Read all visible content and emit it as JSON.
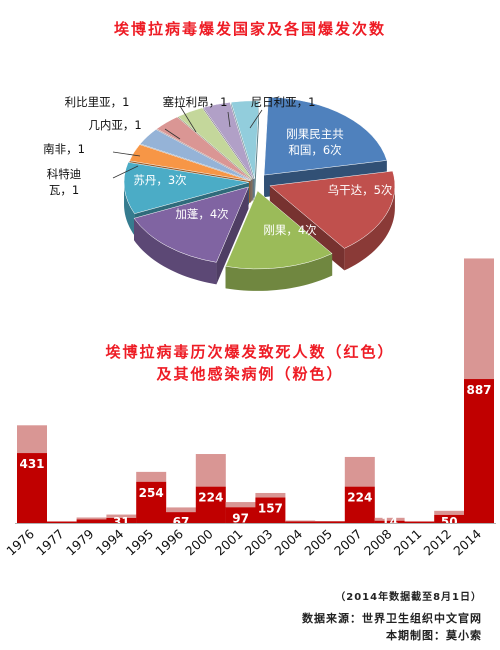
{
  "chart_data": [
    {
      "type": "pie",
      "title": "埃博拉病毒爆发国家及各国爆发次数",
      "slices": [
        {
          "label": "刚果民主共和国，6次",
          "value": 6,
          "color": "#4f81bd"
        },
        {
          "label": "乌干达，5次",
          "value": 5,
          "color": "#c0504d"
        },
        {
          "label": "刚果，4次",
          "value": 4,
          "color": "#9bbb59"
        },
        {
          "label": "加蓬，4次",
          "value": 4,
          "color": "#8064a2"
        },
        {
          "label": "苏丹，3次",
          "value": 3,
          "color": "#4bacc6"
        },
        {
          "label": "科特迪瓦，1",
          "value": 1,
          "color": "#f79646"
        },
        {
          "label": "南非，1",
          "value": 1,
          "color": "#95b3d7"
        },
        {
          "label": "几内亚，1",
          "value": 1,
          "color": "#da9694"
        },
        {
          "label": "利比里亚，1",
          "value": 1,
          "color": "#c4d79b"
        },
        {
          "label": "塞拉利昂，1",
          "value": 1,
          "color": "#b1a0c7"
        },
        {
          "label": "尼日利亚，1",
          "value": 1,
          "color": "#92cddc"
        }
      ]
    },
    {
      "type": "bar",
      "title_line1": "埃博拉病毒历次爆发致死人数（红色）",
      "title_line2": "及其他感染病例（粉色）",
      "categories": [
        "1976",
        "1977",
        "1979",
        "1994",
        "1995",
        "1996",
        "2000",
        "2001",
        "2003",
        "2004",
        "2005",
        "2007",
        "2008",
        "2011",
        "2012",
        "2014"
      ],
      "series": [
        {
          "name": "致死人数",
          "color": "#c00000",
          "values": [
            431,
            1,
            22,
            31,
            254,
            67,
            224,
            97,
            157,
            7,
            9,
            224,
            14,
            1,
            50,
            887
          ]
        },
        {
          "name": "其他感染病例",
          "color": "#d99694",
          "values": [
            171,
            0,
            12,
            21,
            61,
            29,
            201,
            32,
            28,
            6,
            3,
            183,
            18,
            0,
            25,
            743
          ]
        }
      ],
      "labeled": [
        true,
        false,
        false,
        true,
        true,
        true,
        true,
        true,
        true,
        false,
        false,
        true,
        true,
        false,
        true,
        true
      ]
    }
  ],
  "notes": {
    "cutoff": "（2014年数据截至8月1日）",
    "source": "数据来源：世界卫生组织中文官网",
    "author": "本期制图：莫小索"
  }
}
